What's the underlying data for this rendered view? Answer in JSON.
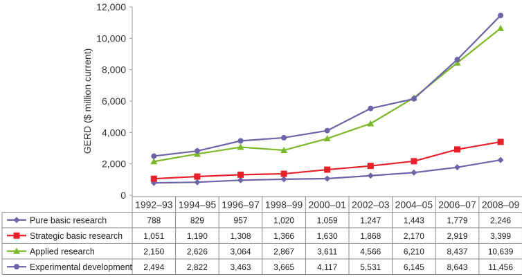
{
  "chart_data": {
    "type": "line",
    "ylabel": "GERD ($ million current)",
    "ylim": [
      0,
      12000
    ],
    "yticks": [
      "0",
      "2,000",
      "4,000",
      "6,000",
      "8,000",
      "10,000",
      "12,000"
    ],
    "categories": [
      "1992–93",
      "1994–95",
      "1996–97",
      "1998–99",
      "2000–01",
      "2002–03",
      "2004–05",
      "2006–07",
      "2008–09"
    ],
    "grid": false,
    "legend": "data-table",
    "series": [
      {
        "name": "Pure basic research",
        "color": "#6b64a8",
        "marker": "diamond",
        "values": [
          788,
          829,
          957,
          1020,
          1059,
          1247,
          1443,
          1779,
          2246
        ],
        "labels": [
          "788",
          "829",
          "957",
          "1,020",
          "1,059",
          "1,247",
          "1,443",
          "1,779",
          "2,246"
        ]
      },
      {
        "name": "Strategic basic research",
        "color": "#e8202a",
        "marker": "square",
        "values": [
          1051,
          1190,
          1308,
          1366,
          1630,
          1868,
          2170,
          2919,
          3399
        ],
        "labels": [
          "1,051",
          "1,190",
          "1,308",
          "1,366",
          "1,630",
          "1,868",
          "2,170",
          "2,919",
          "3,399"
        ]
      },
      {
        "name": "Applied research",
        "color": "#7ab827",
        "marker": "triangle",
        "values": [
          2150,
          2626,
          3064,
          2867,
          3611,
          4566,
          6210,
          8437,
          10639
        ],
        "labels": [
          "2,150",
          "2,626",
          "3,064",
          "2,867",
          "3,611",
          "4,566",
          "6,210",
          "8,437",
          "10,639"
        ]
      },
      {
        "name": "Experimental development",
        "color": "#6b64a8",
        "marker": "circle",
        "values": [
          2494,
          2822,
          3463,
          3665,
          4117,
          5531,
          6145,
          8643,
          11456
        ],
        "labels": [
          "2,494",
          "2,822",
          "3,463",
          "3,665",
          "4,117",
          "5,531",
          "6,145",
          "8,643",
          "11,456"
        ]
      }
    ]
  }
}
